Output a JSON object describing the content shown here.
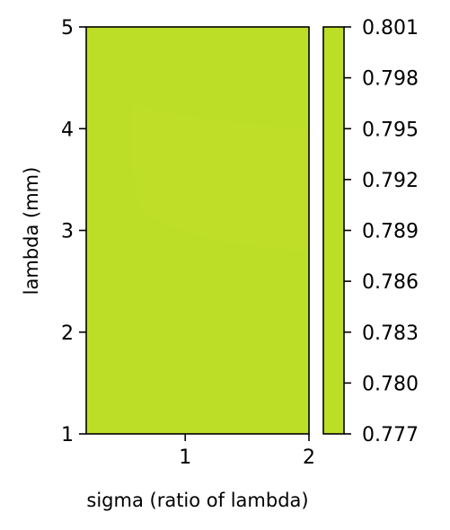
{
  "chart_data": {
    "type": "heatmap",
    "title": "",
    "xlabel": "sigma (ratio of lambda)",
    "ylabel": "lambda (mm)",
    "xlim": [
      0.2,
      2.0
    ],
    "ylim": [
      1,
      5
    ],
    "x_ticks": [
      {
        "value": 1,
        "label": "1"
      },
      {
        "value": 2,
        "label": "2"
      }
    ],
    "y_ticks": [
      {
        "value": 1,
        "label": "1"
      },
      {
        "value": 2,
        "label": "2"
      },
      {
        "value": 3,
        "label": "3"
      },
      {
        "value": 4,
        "label": "4"
      },
      {
        "value": 5,
        "label": "5"
      }
    ],
    "fill_color": "#bcde27",
    "highlight_color": "#bfdf2a",
    "highlight_region": {
      "x": [
        0.5,
        2.0
      ],
      "y": [
        2.8,
        4.25
      ]
    },
    "colorbar": {
      "range": [
        0.777,
        0.801
      ],
      "color": "#bcde27",
      "ticks": [
        {
          "value": 0.777,
          "label": "0.777"
        },
        {
          "value": 0.78,
          "label": "0.780"
        },
        {
          "value": 0.783,
          "label": "0.783"
        },
        {
          "value": 0.786,
          "label": "0.786"
        },
        {
          "value": 0.789,
          "label": "0.789"
        },
        {
          "value": 0.792,
          "label": "0.792"
        },
        {
          "value": 0.795,
          "label": "0.795"
        },
        {
          "value": 0.798,
          "label": "0.798"
        },
        {
          "value": 0.801,
          "label": "0.801"
        }
      ]
    }
  }
}
